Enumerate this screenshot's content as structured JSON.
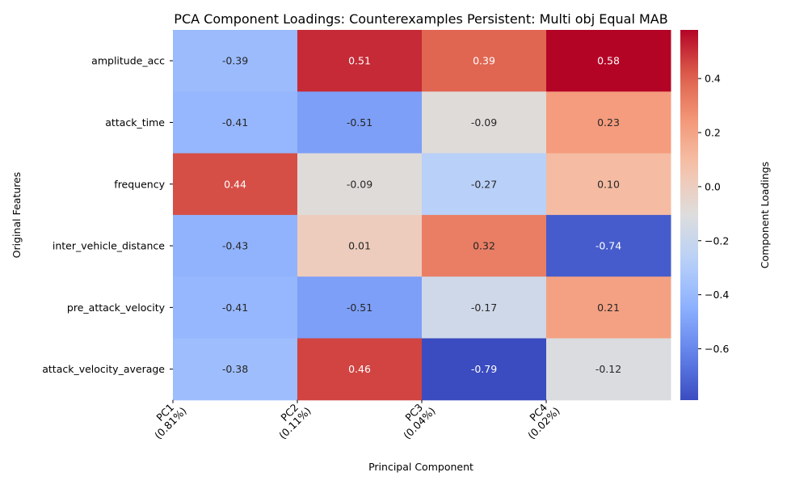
{
  "chart_data": {
    "type": "heatmap",
    "title": "PCA Component Loadings: Counterexamples Persistent: Multi obj Equal MAB",
    "xlabel": "Principal Component",
    "ylabel": "Original Features",
    "colorbar_label": "Component Loadings",
    "colormap": "coolwarm",
    "colorbar_range": [
      -0.79,
      0.58
    ],
    "colorbar_ticks": [
      "0.4",
      "0.2",
      "0.0",
      "−0.2",
      "−0.4",
      "−0.6"
    ],
    "colorbar_tick_values": [
      0.4,
      0.2,
      0.0,
      -0.2,
      -0.4,
      -0.6
    ],
    "x_ticks": [
      {
        "line1": "PC1",
        "line2": "(0.81%)"
      },
      {
        "line1": "PC2",
        "line2": "(0.11%)"
      },
      {
        "line1": "PC3",
        "line2": "(0.04%)"
      },
      {
        "line1": "PC4",
        "line2": "(0.02%)"
      }
    ],
    "rows": [
      "amplitude_acc",
      "attack_time",
      "frequency",
      "inter_vehicle_distance",
      "pre_attack_velocity",
      "attack_velocity_average"
    ],
    "values": [
      [
        -0.39,
        0.51,
        0.39,
        0.58
      ],
      [
        -0.41,
        -0.51,
        -0.09,
        0.23
      ],
      [
        0.44,
        -0.09,
        -0.27,
        0.1
      ],
      [
        -0.43,
        0.01,
        0.32,
        -0.74
      ],
      [
        -0.41,
        -0.51,
        -0.17,
        0.21
      ],
      [
        -0.38,
        0.46,
        -0.79,
        -0.12
      ]
    ],
    "value_labels": [
      [
        "-0.39",
        "0.51",
        "0.39",
        "0.58"
      ],
      [
        "-0.41",
        "-0.51",
        "-0.09",
        "0.23"
      ],
      [
        "0.44",
        "-0.09",
        "-0.27",
        "0.10"
      ],
      [
        "-0.43",
        "0.01",
        "0.32",
        "-0.74"
      ],
      [
        "-0.41",
        "-0.51",
        "-0.17",
        "0.21"
      ],
      [
        "-0.38",
        "0.46",
        "-0.79",
        "-0.12"
      ]
    ]
  }
}
